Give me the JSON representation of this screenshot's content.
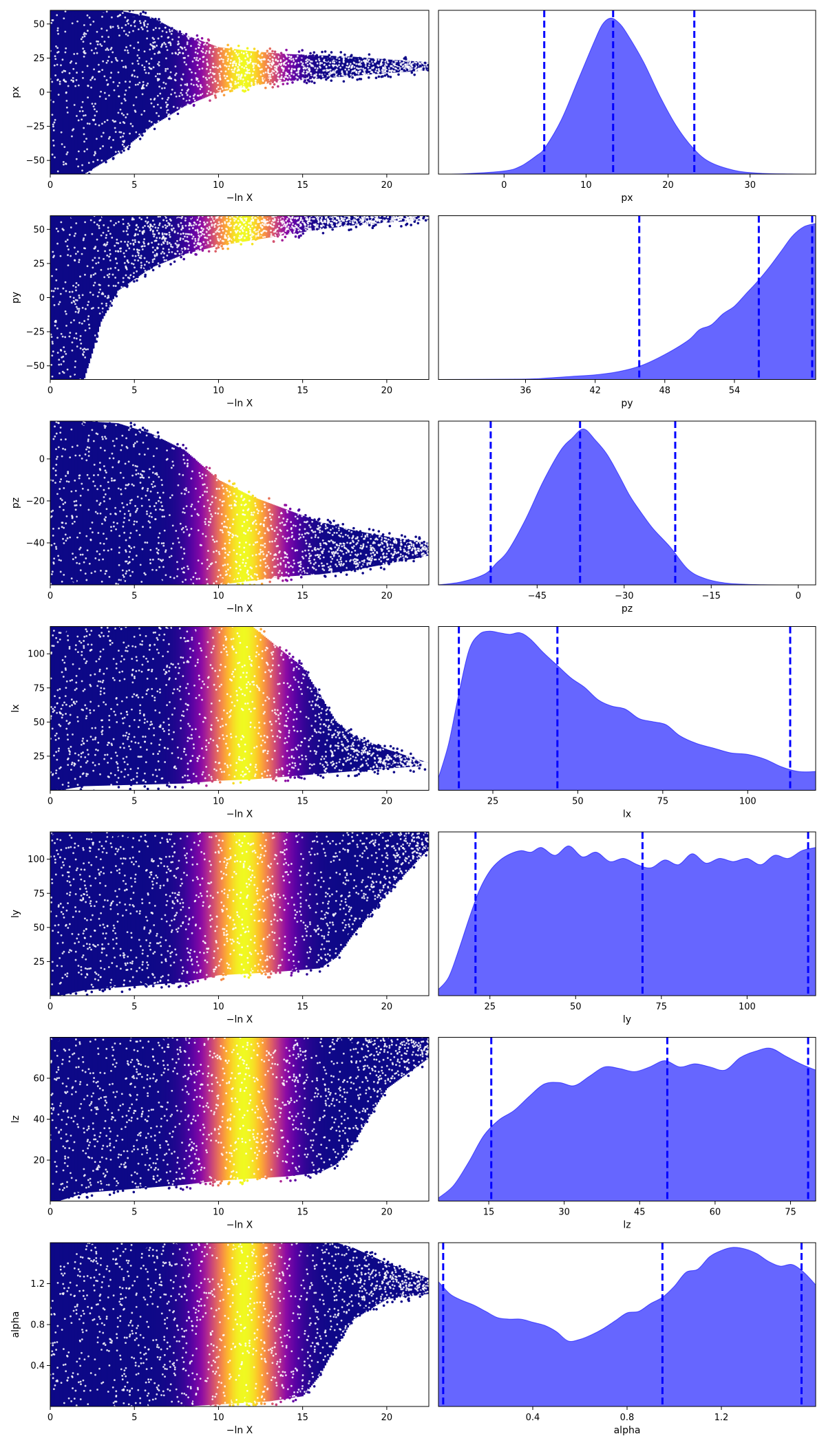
{
  "figure": {
    "description_free": true,
    "trace_colormap": "plasma",
    "density_color": "#0000ff",
    "density_fill_opacity": 0.6,
    "quantile_line_color": "#0000ff",
    "quantile_line_style": "dashed"
  },
  "chart_data": [
    {
      "type": "scatter",
      "name": "trace-px",
      "xlabel": "−ln X",
      "ylabel": "px",
      "xlim": [
        0,
        22.5
      ],
      "ylim": [
        -60,
        60
      ],
      "xticks": [
        0,
        5,
        10,
        15,
        20
      ],
      "yticks": [
        -50,
        -25,
        0,
        25,
        50
      ],
      "envelope": {
        "x": [
          0,
          2,
          4,
          6,
          8,
          10,
          12,
          14,
          16,
          18,
          20,
          22.5
        ],
        "lower": [
          -60,
          -60,
          -45,
          -25,
          -10,
          0,
          5,
          8,
          10,
          12,
          14,
          16
        ],
        "upper": [
          60,
          60,
          60,
          55,
          42,
          33,
          30,
          28,
          27,
          26,
          24,
          22
        ]
      },
      "colormap": "plasma",
      "peak_x": 11.5
    },
    {
      "type": "area",
      "name": "density-px",
      "xlabel": "px",
      "xlim": [
        -8,
        38
      ],
      "ylim": [
        0,
        1.05
      ],
      "xticks": [
        0,
        10,
        20,
        30
      ],
      "x": [
        -8,
        -5,
        0,
        2,
        4,
        5,
        7,
        9,
        11,
        12,
        13,
        14,
        15,
        17,
        19,
        21,
        23,
        25,
        28,
        31,
        35,
        38
      ],
      "y": [
        0,
        0.002,
        0.02,
        0.05,
        0.12,
        0.17,
        0.35,
        0.6,
        0.85,
        0.96,
        1.0,
        0.97,
        0.9,
        0.72,
        0.5,
        0.31,
        0.17,
        0.08,
        0.025,
        0.006,
        0.001,
        0
      ],
      "quantiles": [
        4.9,
        13.3,
        23.2
      ]
    },
    {
      "type": "scatter",
      "name": "trace-py",
      "xlabel": "−ln X",
      "ylabel": "py",
      "xlim": [
        0,
        22.5
      ],
      "ylim": [
        -60,
        60
      ],
      "xticks": [
        0,
        5,
        10,
        15,
        20
      ],
      "yticks": [
        -50,
        -25,
        0,
        25,
        50
      ],
      "envelope": {
        "x": [
          0,
          1,
          2,
          2.5,
          3,
          4,
          6,
          8,
          10,
          12,
          14,
          16,
          18,
          20,
          22.5
        ],
        "lower": [
          -60,
          -60,
          -60,
          -40,
          -18,
          5,
          22,
          32,
          38,
          42,
          46,
          50,
          53,
          55,
          57
        ],
        "upper": [
          60,
          60,
          60,
          60,
          60,
          60,
          60,
          60,
          60,
          60,
          60,
          60,
          60,
          60,
          60
        ]
      },
      "colormap": "plasma",
      "peak_x": 11.5
    },
    {
      "type": "area",
      "name": "density-py",
      "xlabel": "py",
      "xlim": [
        28.5,
        61
      ],
      "ylim": [
        0,
        1.05
      ],
      "xticks": [
        36,
        42,
        48,
        54
      ],
      "x": [
        28.5,
        36,
        38,
        40,
        42,
        44,
        46,
        48,
        50,
        51,
        52,
        53,
        54,
        55,
        56,
        57,
        58,
        59,
        60,
        61
      ],
      "y": [
        0,
        0.003,
        0.01,
        0.02,
        0.03,
        0.05,
        0.09,
        0.16,
        0.25,
        0.32,
        0.35,
        0.42,
        0.47,
        0.55,
        0.63,
        0.72,
        0.82,
        0.92,
        0.98,
        1.0
      ],
      "quantiles": [
        45.8,
        56.1,
        60.7
      ]
    },
    {
      "type": "scatter",
      "name": "trace-pz",
      "xlabel": "−ln X",
      "ylabel": "pz",
      "xlim": [
        0,
        22.5
      ],
      "ylim": [
        -60,
        18
      ],
      "xticks": [
        0,
        5,
        10,
        15,
        20
      ],
      "yticks": [
        -40,
        -20,
        0
      ],
      "envelope": {
        "x": [
          0,
          2,
          4,
          6,
          8,
          10,
          12,
          14,
          16,
          18,
          20,
          22.5
        ],
        "lower": [
          -60,
          -60,
          -60,
          -60,
          -60,
          -60,
          -58,
          -56,
          -55,
          -53,
          -50,
          -46
        ],
        "upper": [
          18,
          18,
          17,
          12,
          4,
          -10,
          -18,
          -24,
          -30,
          -34,
          -37,
          -40
        ]
      },
      "colormap": "plasma",
      "peak_x": 11.5
    },
    {
      "type": "area",
      "name": "density-pz",
      "xlabel": "pz",
      "xlim": [
        -62,
        3
      ],
      "ylim": [
        0,
        1.05
      ],
      "xticks": [
        -45,
        -30,
        -15,
        0
      ],
      "x": [
        -62,
        -58,
        -54,
        -52,
        -50,
        -47,
        -44,
        -41,
        -39,
        -37,
        -35,
        -33,
        -31,
        -29,
        -27,
        -25,
        -22,
        -19,
        -16,
        -12,
        -6,
        3
      ],
      "y": [
        0,
        0.02,
        0.07,
        0.14,
        0.22,
        0.42,
        0.66,
        0.86,
        0.94,
        1.0,
        0.93,
        0.84,
        0.71,
        0.57,
        0.46,
        0.36,
        0.24,
        0.1,
        0.04,
        0.01,
        0.001,
        0
      ],
      "quantiles": [
        -53.0,
        -37.6,
        -21.2
      ]
    },
    {
      "type": "scatter",
      "name": "trace-lx",
      "xlabel": "−ln X",
      "ylabel": "lx",
      "xlim": [
        0,
        22.5
      ],
      "ylim": [
        0,
        120
      ],
      "xticks": [
        0,
        5,
        10,
        15,
        20
      ],
      "yticks": [
        25,
        50,
        75,
        100
      ],
      "envelope": {
        "x": [
          0,
          0.5,
          2,
          8,
          10,
          12,
          13,
          14,
          15,
          16,
          17,
          18,
          20,
          22.5
        ],
        "lower": [
          0,
          0,
          3,
          5,
          7,
          8,
          9,
          10,
          11,
          12,
          13,
          14,
          16,
          18
        ],
        "upper": [
          120,
          120,
          120,
          120,
          120,
          120,
          110,
          100,
          90,
          70,
          50,
          40,
          30,
          20
        ]
      },
      "colormap": "plasma",
      "peak_x": 11.5
    },
    {
      "type": "area",
      "name": "density-lx",
      "xlabel": "lx",
      "xlim": [
        9,
        120
      ],
      "ylim": [
        0,
        1.05
      ],
      "xticks": [
        25,
        50,
        75,
        100
      ],
      "x": [
        9,
        12,
        15,
        18,
        21,
        24,
        27,
        30,
        33,
        36,
        40,
        44,
        48,
        52,
        56,
        60,
        64,
        68,
        72,
        76,
        80,
        85,
        90,
        95,
        100,
        105,
        110,
        115,
        120
      ],
      "y": [
        0.08,
        0.3,
        0.62,
        0.9,
        1.0,
        1.02,
        1.01,
        1.0,
        1.01,
        0.97,
        0.88,
        0.8,
        0.72,
        0.66,
        0.58,
        0.54,
        0.52,
        0.46,
        0.44,
        0.42,
        0.35,
        0.3,
        0.27,
        0.24,
        0.23,
        0.2,
        0.15,
        0.12,
        0.12
      ],
      "quantiles": [
        15.0,
        44.0,
        112.5
      ]
    },
    {
      "type": "scatter",
      "name": "trace-ly",
      "xlabel": "−ln X",
      "ylabel": "ly",
      "xlim": [
        0,
        22.5
      ],
      "ylim": [
        0,
        120
      ],
      "xticks": [
        0,
        5,
        10,
        15,
        20
      ],
      "yticks": [
        25,
        50,
        75,
        100
      ],
      "envelope": {
        "x": [
          0,
          0.5,
          2,
          8,
          10,
          13,
          15,
          16,
          17,
          18,
          20,
          22.5
        ],
        "lower": [
          0,
          0,
          4,
          10,
          15,
          17,
          19,
          20,
          28,
          45,
          75,
          108
        ],
        "upper": [
          120,
          120,
          120,
          120,
          120,
          120,
          120,
          120,
          120,
          120,
          120,
          120
        ]
      },
      "colormap": "plasma",
      "peak_x": 11.5
    },
    {
      "type": "area",
      "name": "density-ly",
      "xlabel": "ly",
      "xlim": [
        10,
        120
      ],
      "ylim": [
        0,
        1.05
      ],
      "xticks": [
        25,
        50,
        75,
        100
      ],
      "x": [
        10,
        13,
        16,
        19,
        22,
        25,
        28,
        31,
        34,
        37,
        40,
        44,
        48,
        52,
        56,
        60,
        64,
        68,
        72,
        76,
        80,
        84,
        88,
        92,
        96,
        100,
        104,
        108,
        112,
        116,
        120
      ],
      "y": [
        0.04,
        0.12,
        0.3,
        0.5,
        0.68,
        0.8,
        0.87,
        0.91,
        0.93,
        0.92,
        0.95,
        0.9,
        0.96,
        0.89,
        0.92,
        0.86,
        0.88,
        0.84,
        0.82,
        0.87,
        0.84,
        0.91,
        0.85,
        0.88,
        0.86,
        0.88,
        0.84,
        0.9,
        0.88,
        0.93,
        0.95
      ],
      "quantiles": [
        20.8,
        69.5,
        117.8
      ]
    },
    {
      "type": "scatter",
      "name": "trace-lz",
      "xlabel": "−ln X",
      "ylabel": "lz",
      "xlim": [
        0,
        22.5
      ],
      "ylim": [
        0,
        80
      ],
      "xticks": [
        0,
        5,
        10,
        15,
        20
      ],
      "yticks": [
        20,
        40,
        60
      ],
      "envelope": {
        "x": [
          0,
          0.5,
          2,
          8,
          10,
          12,
          14,
          16,
          17,
          18,
          19,
          20,
          22.5
        ],
        "lower": [
          0,
          0,
          4,
          8,
          10,
          11,
          12,
          14,
          18,
          28,
          42,
          55,
          70
        ],
        "upper": [
          80,
          80,
          80,
          80,
          80,
          80,
          80,
          80,
          80,
          80,
          80,
          80,
          80
        ]
      },
      "colormap": "plasma",
      "peak_x": 11.5
    },
    {
      "type": "area",
      "name": "density-lz",
      "xlabel": "lz",
      "xlim": [
        5,
        80
      ],
      "ylim": [
        0,
        1.05
      ],
      "xticks": [
        15,
        30,
        45,
        60,
        75
      ],
      "x": [
        5,
        8,
        11,
        14,
        17,
        20,
        23,
        26,
        29,
        32,
        35,
        38,
        41,
        44,
        47,
        50,
        53,
        56,
        59,
        62,
        65,
        68,
        71,
        74,
        77,
        80
      ],
      "y": [
        0.02,
        0.1,
        0.25,
        0.42,
        0.52,
        0.58,
        0.67,
        0.75,
        0.76,
        0.74,
        0.8,
        0.86,
        0.85,
        0.83,
        0.86,
        0.9,
        0.86,
        0.88,
        0.86,
        0.84,
        0.92,
        0.96,
        0.98,
        0.93,
        0.88,
        0.84
      ],
      "quantiles": [
        15.5,
        50.5,
        78.5
      ]
    },
    {
      "type": "scatter",
      "name": "trace-alpha",
      "xlabel": "−ln X",
      "ylabel": "alpha",
      "xlim": [
        0,
        22.5
      ],
      "ylim": [
        0,
        1.6
      ],
      "xticks": [
        0,
        5,
        10,
        15,
        20
      ],
      "yticks": [
        0.4,
        0.8,
        1.2
      ],
      "envelope": {
        "x": [
          0,
          2,
          8,
          10,
          13,
          15,
          16,
          17,
          18,
          20,
          22.5
        ],
        "lower": [
          0,
          0,
          0,
          0.02,
          0.05,
          0.1,
          0.3,
          0.6,
          0.85,
          1.05,
          1.1
        ],
        "upper": [
          1.6,
          1.6,
          1.6,
          1.6,
          1.6,
          1.6,
          1.6,
          1.6,
          1.55,
          1.4,
          1.25
        ]
      },
      "colormap": "plasma",
      "peak_x": 11.5
    },
    {
      "type": "area",
      "name": "density-alpha",
      "xlabel": "alpha",
      "xlim": [
        0,
        1.6
      ],
      "ylim": [
        0,
        1.05
      ],
      "xticks": [
        0.4,
        0.8,
        1.2
      ],
      "x": [
        0,
        0.05,
        0.1,
        0.15,
        0.2,
        0.25,
        0.3,
        0.35,
        0.4,
        0.45,
        0.5,
        0.55,
        0.6,
        0.65,
        0.7,
        0.75,
        0.8,
        0.85,
        0.9,
        0.95,
        1.0,
        1.05,
        1.1,
        1.15,
        1.2,
        1.25,
        1.3,
        1.35,
        1.4,
        1.45,
        1.5,
        1.55,
        1.6
      ],
      "y": [
        0.8,
        0.72,
        0.68,
        0.65,
        0.61,
        0.57,
        0.56,
        0.56,
        0.54,
        0.52,
        0.48,
        0.42,
        0.43,
        0.46,
        0.5,
        0.55,
        0.6,
        0.61,
        0.66,
        0.7,
        0.77,
        0.86,
        0.88,
        0.96,
        1.0,
        1.02,
        1.01,
        0.98,
        0.93,
        0.9,
        0.91,
        0.86,
        0.78
      ],
      "quantiles": [
        0.02,
        0.95,
        1.54
      ]
    }
  ]
}
